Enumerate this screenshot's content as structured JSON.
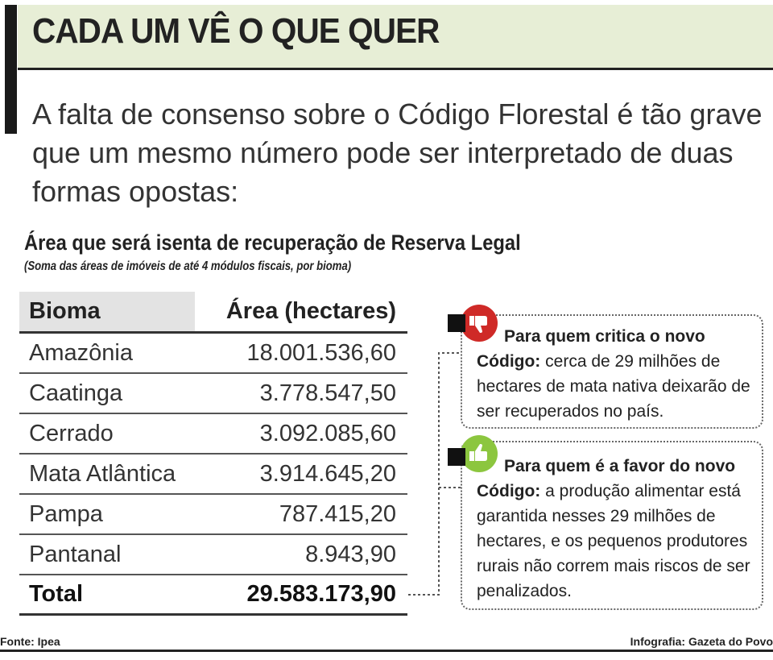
{
  "header": {
    "title": "CADA UM VÊ O QUE QUER",
    "intro": "A falta de consenso sobre o Código Florestal é tão grave que um mesmo número pode ser interpretado de duas formas opostas:"
  },
  "table": {
    "title": "Área que será isenta de recuperação de Reserva Legal",
    "subtitle": "(Soma das áreas de imóveis de até 4 módulos fiscais, por bioma)",
    "columns": [
      "Bioma",
      "Área (hectares)"
    ],
    "rows": [
      {
        "bioma": "Amazônia",
        "area": "18.001.536,60"
      },
      {
        "bioma": "Caatinga",
        "area": "3.778.547,50"
      },
      {
        "bioma": "Cerrado",
        "area": "3.092.085,60"
      },
      {
        "bioma": "Mata Atlântica",
        "area": "3.914.645,20"
      },
      {
        "bioma": "Pampa",
        "area": "787.415,20"
      },
      {
        "bioma": "Pantanal",
        "area": "8.943,90"
      }
    ],
    "total": {
      "label": "Total",
      "value": "29.583.173,90"
    }
  },
  "callouts": {
    "critic": {
      "icon": "thumbs-down-icon",
      "title": "Para quem critica o novo",
      "lead": "Código:",
      "body": " cerca de 29 milhões de hectares de mata nativa deixarão de ser recuperados no país."
    },
    "favor": {
      "icon": "thumbs-up-icon",
      "title": "Para quem é a favor do novo",
      "lead": "Código:",
      "body": " a produção alimentar está garantida nesses 29 milhões de hectares, e os pequenos produtores rurais não correm mais riscos de ser penalizados."
    }
  },
  "footer": {
    "source": "Fonte: Ipea",
    "credit": "Infografia: Gazeta do Povo"
  },
  "colors": {
    "title_band": "#e7eed6",
    "critic_badge": "#cf2a27",
    "favor_badge": "#8cc63f"
  }
}
